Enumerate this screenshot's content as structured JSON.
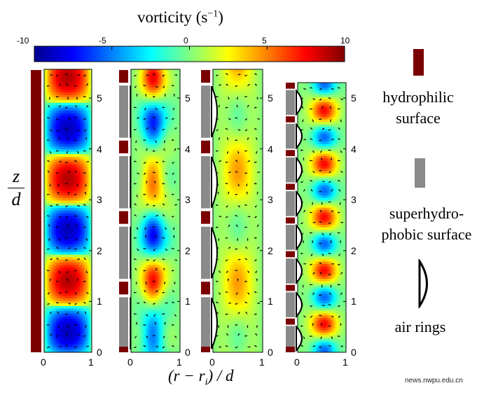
{
  "colorbar": {
    "title": "vorticity",
    "unit_base": "s",
    "unit_exp": "−1",
    "unit_open": "(",
    "unit_close": ")",
    "tick_labels": [
      "-10",
      "-5",
      "0",
      "5",
      "10"
    ],
    "tick_values": [
      -10,
      -5,
      0,
      5,
      10
    ],
    "range": [
      -10,
      10
    ],
    "colormap": [
      "#00008f",
      "#0000ff",
      "#0080ff",
      "#00ffff",
      "#80ff80",
      "#ffff00",
      "#ff8000",
      "#ff0000",
      "#800000"
    ]
  },
  "y_axis": {
    "numerator": "z",
    "denominator": "d"
  },
  "x_axis": {
    "label_text": "(r − r",
    "label_sub": "i",
    "label_tail": ") / d"
  },
  "panels": [
    {
      "id": "hydrophilic",
      "x_ticks": [
        "0",
        "1"
      ],
      "y_ticks": [
        "0",
        "1",
        "2",
        "3",
        "4",
        "5"
      ]
    },
    {
      "id": "superhydrophobic-stripes",
      "x_ticks": [
        "0",
        "1"
      ],
      "y_ticks": [
        "0",
        "1",
        "2",
        "3",
        "4",
        "5"
      ]
    },
    {
      "id": "air-rings-long",
      "x_ticks": [
        "0",
        "1"
      ],
      "y_ticks": [
        "0",
        "1",
        "2",
        "3",
        "4",
        "5"
      ]
    },
    {
      "id": "air-rings-short",
      "x_ticks": [
        "0",
        "1"
      ],
      "y_ticks": [
        "0",
        "1",
        "2",
        "3",
        "4",
        "5"
      ]
    }
  ],
  "legend": {
    "hydrophilic": {
      "line1": "hydrophilic",
      "line2": "surface",
      "color": "#7b0000"
    },
    "superhydrophobic": {
      "line1": "superhydro-",
      "line2": "phobic surface",
      "color": "#8a8a8a"
    },
    "air_rings": {
      "line1": "air rings"
    }
  },
  "watermark": "news.nwpu.edu.cn"
}
